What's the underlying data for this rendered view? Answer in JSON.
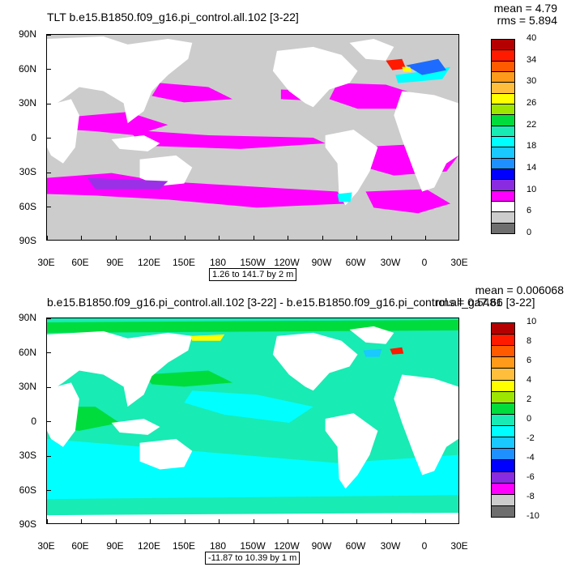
{
  "panels": [
    {
      "title": "TLT b.e15.B1850.f09_g16.pi_control.all.102 [3-22]",
      "stats": [
        "mean = 4.79",
        "rms = 5.894"
      ],
      "range_label": "1.26 to 141.7 by 2 m",
      "lat_labels": [
        "90N",
        "60N",
        "30N",
        "0",
        "30S",
        "60S",
        "90S"
      ],
      "lon_labels": [
        "30E",
        "60E",
        "90E",
        "120E",
        "150E",
        "180",
        "150W",
        "120W",
        "90W",
        "60W",
        "30W",
        "0",
        "30E"
      ],
      "colorbar_colors": [
        "#b40000",
        "#ff1a00",
        "#ff5a00",
        "#ff9a1a",
        "#ffbe3c",
        "#ffff00",
        "#9ce600",
        "#00dc3c",
        "#18ebb4",
        "#00ffff",
        "#19c9ff",
        "#1e90ff",
        "#0000ff",
        "#8a2be2",
        "#ff00ff",
        "#ffffff",
        "#cccccc",
        "#6e6e6e"
      ],
      "colorbar_labels": [
        "40",
        "34",
        "30",
        "26",
        "22",
        "18",
        "14",
        "10",
        "6",
        "0"
      ],
      "map_colors": {
        "ocean_base": "#cccccc",
        "land": "#ffffff",
        "band": "#ff00ff",
        "purple": "#9a31e6",
        "cyan": "#00ffff",
        "blue": "#1e6cff",
        "red": "#ff1a00",
        "yellow": "#ffff00"
      }
    },
    {
      "title": "b.e15.B1850.f09_g16.pi_control.all.102 [3-22] - b.e15.B1850.f09_g16.pi_control.all_ga7.66 [3-22]",
      "stats": [
        "mean = 0.006068",
        "rms = 0.5481"
      ],
      "range_label": "-11.87 to 10.39 by 1 m",
      "lat_labels": [
        "90N",
        "60N",
        "30N",
        "0",
        "30S",
        "60S",
        "90S"
      ],
      "lon_labels": [
        "30E",
        "60E",
        "90E",
        "120E",
        "150E",
        "180",
        "150W",
        "120W",
        "90W",
        "60W",
        "30W",
        "0",
        "30E"
      ],
      "colorbar_colors": [
        "#b40000",
        "#ff1a00",
        "#ff5a00",
        "#ff9a1a",
        "#ffbe3c",
        "#ffff00",
        "#9ce600",
        "#00dc3c",
        "#18ebb4",
        "#00ffff",
        "#19c9ff",
        "#1e90ff",
        "#0000ff",
        "#8a2be2",
        "#ff00ff",
        "#cccccc",
        "#6e6e6e"
      ],
      "colorbar_labels": [
        "10",
        "8",
        "6",
        "4",
        "2",
        "0",
        "-2",
        "-4",
        "-6",
        "-8",
        "-10"
      ],
      "map_colors": {
        "ocean_base": "#18ebb4",
        "land": "#ffffff",
        "cyan": "#00ffff",
        "green": "#00dc3c",
        "yellow": "#ffff00",
        "red": "#ff1a00",
        "blue": "#19c9ff"
      }
    }
  ],
  "chart_data": [
    {
      "type": "heatmap",
      "title": "TLT b.e15.B1850.f09_g16.pi_control.all.102 [3-22]",
      "stats": {
        "mean": 4.79,
        "rms": 5.894
      },
      "range": {
        "min": 1.26,
        "max": 141.7,
        "step": 2,
        "unit": "m"
      },
      "xlabel": "",
      "ylabel": "",
      "x_ticks": [
        "30E",
        "60E",
        "90E",
        "120E",
        "150E",
        "180",
        "150W",
        "120W",
        "90W",
        "60W",
        "30W",
        "0",
        "30E"
      ],
      "y_ticks": [
        "90N",
        "60N",
        "30N",
        "0",
        "30S",
        "60S",
        "90S"
      ],
      "colorbar_levels": [
        0,
        6,
        10,
        14,
        18,
        22,
        26,
        30,
        34,
        40
      ]
    },
    {
      "type": "heatmap",
      "title": "b.e15.B1850.f09_g16.pi_control.all.102 [3-22] - b.e15.B1850.f09_g16.pi_control.all_ga7.66 [3-22]",
      "stats": {
        "mean": 0.006068,
        "rms": 0.5481
      },
      "range": {
        "min": -11.87,
        "max": 10.39,
        "step": 1,
        "unit": "m"
      },
      "xlabel": "",
      "ylabel": "",
      "x_ticks": [
        "30E",
        "60E",
        "90E",
        "120E",
        "150E",
        "180",
        "150W",
        "120W",
        "90W",
        "60W",
        "30W",
        "0",
        "30E"
      ],
      "y_ticks": [
        "90N",
        "60N",
        "30N",
        "0",
        "30S",
        "60S",
        "90S"
      ],
      "colorbar_levels": [
        -10,
        -8,
        -6,
        -4,
        -2,
        0,
        2,
        4,
        6,
        8,
        10
      ]
    }
  ]
}
